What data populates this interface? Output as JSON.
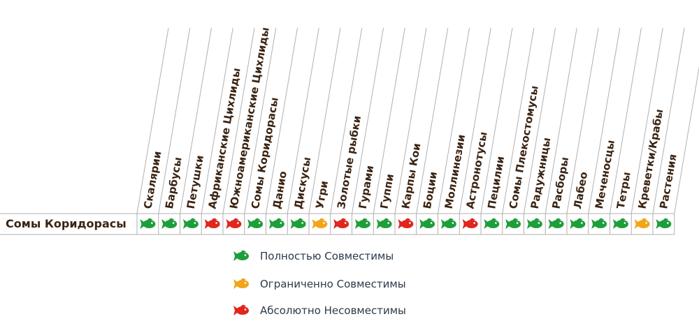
{
  "row": {
    "label": "Сомы Коридорасы"
  },
  "columns": [
    {
      "label": "Скалярии",
      "status": "green"
    },
    {
      "label": "Барбусы",
      "status": "green"
    },
    {
      "label": "Петушки",
      "status": "green"
    },
    {
      "label": "Африканские Цихлиды",
      "status": "red"
    },
    {
      "label": "Южноамериканские Цихлиды",
      "status": "red"
    },
    {
      "label": "Сомы Коридорасы",
      "status": "green"
    },
    {
      "label": "Данио",
      "status": "green"
    },
    {
      "label": "Дискусы",
      "status": "green"
    },
    {
      "label": "Угри",
      "status": "orange"
    },
    {
      "label": "Золотые рыбки",
      "status": "red"
    },
    {
      "label": "Гурами",
      "status": "green"
    },
    {
      "label": "Гуппи",
      "status": "green"
    },
    {
      "label": "Карпы Кои",
      "status": "red"
    },
    {
      "label": "Боции",
      "status": "green"
    },
    {
      "label": "Моллинезии",
      "status": "green"
    },
    {
      "label": "Астронотусы",
      "status": "red"
    },
    {
      "label": "Пецилии",
      "status": "green"
    },
    {
      "label": "Сомы Плекостомусы",
      "status": "green"
    },
    {
      "label": "Радужницы",
      "status": "green"
    },
    {
      "label": "Расборы",
      "status": "green"
    },
    {
      "label": "Лабео",
      "status": "green"
    },
    {
      "label": "Меченосцы",
      "status": "green"
    },
    {
      "label": "Тетры",
      "status": "green"
    },
    {
      "label": "Креветки/Крабы",
      "status": "orange"
    },
    {
      "label": "Растения",
      "status": "green"
    }
  ],
  "legend": [
    {
      "label": "Полностью Совместимы",
      "status": "green"
    },
    {
      "label": "Ограниченно  Совместимы",
      "status": "orange"
    },
    {
      "label": "Абсолютно  Несовместимы",
      "status": "red"
    }
  ],
  "colors": {
    "green": "#1e9e3a",
    "orange": "#f2a51c",
    "red": "#e0261e",
    "grid": "#b0b0b0",
    "text": "#3b2413"
  }
}
